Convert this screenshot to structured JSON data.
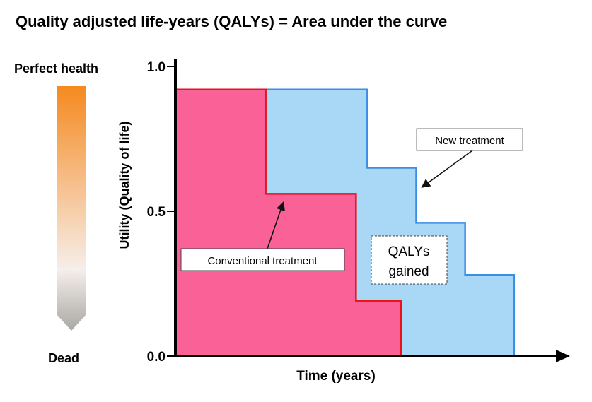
{
  "chart_data": {
    "type": "area",
    "title": "Quality adjusted life-years (QALYs) = Area under the curve",
    "xlabel": "Time (years)",
    "ylabel": "Utility (Quality of life)",
    "ylim": [
      0,
      1.0
    ],
    "xlim": [
      0,
      10
    ],
    "yticks": [
      "0.0",
      "0.5",
      "1.0"
    ],
    "grid": false,
    "scale_labels": {
      "top": "Perfect health",
      "bottom": "Dead"
    },
    "scale_gradient": {
      "top": "#f58a1f",
      "bottom": "#a9a9a4"
    },
    "series": [
      {
        "name": "New treatment",
        "color": "#3a8ee6",
        "fill": "#a8d8f5",
        "steps": [
          {
            "x0": 0,
            "x1": 5.1,
            "y": 0.92
          },
          {
            "x0": 5.1,
            "x1": 6.4,
            "y": 0.65
          },
          {
            "x0": 6.4,
            "x1": 7.7,
            "y": 0.46
          },
          {
            "x0": 7.7,
            "x1": 9.0,
            "y": 0.28
          }
        ]
      },
      {
        "name": "Conventional treatment",
        "color": "#e8131b",
        "fill": "#fa6196",
        "steps": [
          {
            "x0": 0,
            "x1": 2.4,
            "y": 0.92
          },
          {
            "x0": 2.4,
            "x1": 4.8,
            "y": 0.56
          },
          {
            "x0": 4.8,
            "x1": 6.0,
            "y": 0.19
          }
        ]
      }
    ],
    "annotations": {
      "gain": "QALYs gained",
      "gain_line1": "QALYs",
      "gain_line2": "gained"
    }
  }
}
